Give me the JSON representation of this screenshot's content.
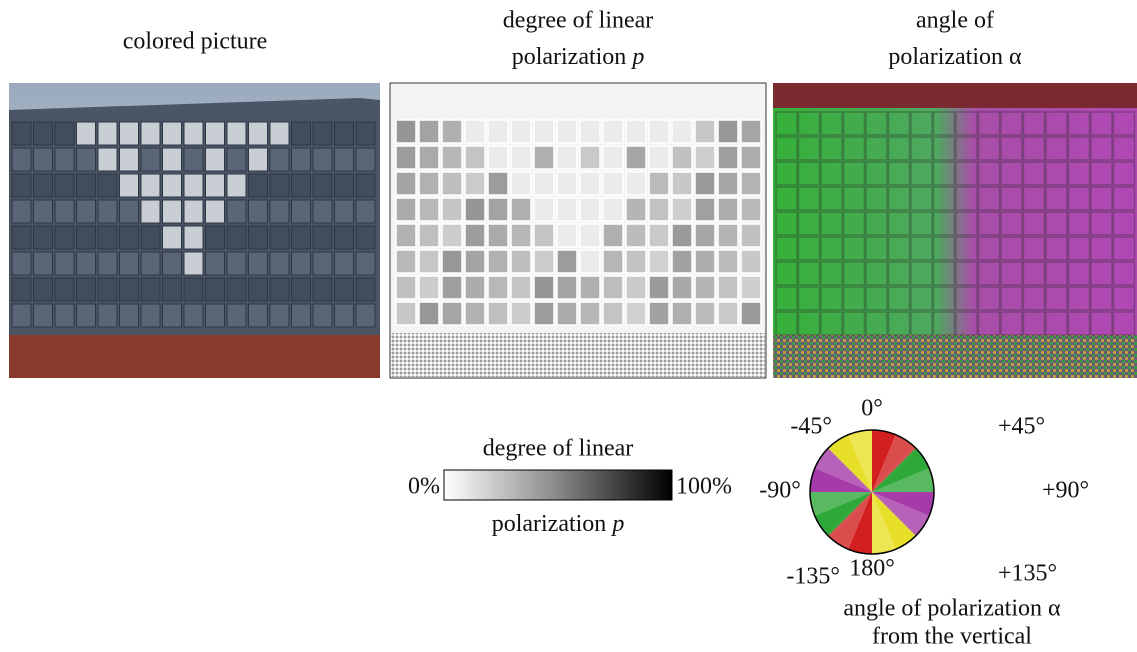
{
  "panels": [
    {
      "title": [
        "colored picture"
      ]
    },
    {
      "title": [
        "degree of linear",
        "polarization"
      ],
      "symbol": "p"
    },
    {
      "title": [
        "angle of",
        "polarization"
      ],
      "symbol": "α"
    }
  ],
  "dop_legend": {
    "label_top": "degree of linear",
    "label_bottom": "polarization",
    "symbol": "p",
    "min_label": "0%",
    "max_label": "100%"
  },
  "angle_legend": {
    "labels": [
      "0°",
      "+45°",
      "+90°",
      "+135°",
      "180°",
      "-135°",
      "-90°",
      "-45°"
    ],
    "caption": [
      "angle of polarization α",
      "from the vertical"
    ]
  }
}
